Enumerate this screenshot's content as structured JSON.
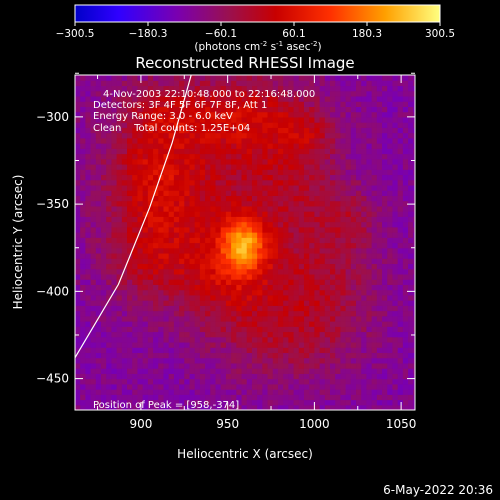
{
  "chart_data": {
    "type": "heatmap",
    "title": "Reconstructed RHESSI Image",
    "xlabel": "Heliocentric X (arcsec)",
    "ylabel": "Heliocentric Y (arcsec)",
    "xlim": [
      862,
      1058
    ],
    "ylim": [
      -468,
      -276
    ],
    "x_ticks": [
      900,
      950,
      1000,
      1050
    ],
    "y_ticks": [
      -300,
      -350,
      -400,
      -450
    ],
    "colorbar": {
      "range": [
        -300.5,
        300.5
      ],
      "ticks": [
        "-300.5",
        "-180.3",
        "-60.1",
        "60.1",
        "180.3",
        "300.5"
      ],
      "unit_label_parts": [
        "(photons cm",
        "-2",
        " s",
        "-1",
        " asec",
        "-2",
        ")"
      ],
      "colormap": "rhessi-purple-red-yellow"
    },
    "annotations": {
      "time": "4-Nov-2003 22:10:48.000 to 22:16:48.000",
      "detectors": "Detectors: 3F 4F 5F 6F 7F 8F, Att 1",
      "energy": "Energy Range: 3.0 - 6.0 keV",
      "clean": "Clean    Total counts: 1.25E+04",
      "peak": "Position of Peak = [958,-374]"
    },
    "peak": {
      "x": 958,
      "y": -374,
      "value": 300.5
    },
    "limb": [
      [
        862,
        -438
      ],
      [
        887,
        -396
      ],
      [
        905,
        -352
      ],
      [
        918,
        -315
      ],
      [
        929,
        -276
      ]
    ],
    "hotspots": [
      {
        "x": 958,
        "y": -374,
        "sx": 9,
        "sy": 11,
        "a": 210
      },
      {
        "x": 948,
        "y": -390,
        "sx": 22,
        "sy": 20,
        "a": 120
      },
      {
        "x": 930,
        "y": -330,
        "sx": 34,
        "sy": 40,
        "a": 95
      },
      {
        "x": 905,
        "y": -340,
        "sx": 18,
        "sy": 26,
        "a": 90
      },
      {
        "x": 900,
        "y": -385,
        "sx": 16,
        "sy": 16,
        "a": 70
      },
      {
        "x": 960,
        "y": -300,
        "sx": 20,
        "sy": 14,
        "a": 85
      },
      {
        "x": 985,
        "y": -330,
        "sx": 20,
        "sy": 28,
        "a": 75
      },
      {
        "x": 1005,
        "y": -395,
        "sx": 20,
        "sy": 30,
        "a": 80
      },
      {
        "x": 975,
        "y": -425,
        "sx": 26,
        "sy": 20,
        "a": 70
      },
      {
        "x": 915,
        "y": -300,
        "sx": 16,
        "sy": 10,
        "a": 60
      },
      {
        "x": 995,
        "y": -310,
        "sx": 10,
        "sy": 10,
        "a": 55
      },
      {
        "x": 1020,
        "y": -360,
        "sx": 10,
        "sy": 12,
        "a": 50
      }
    ]
  },
  "footer": {
    "date": "6-May-2022 20:36"
  }
}
